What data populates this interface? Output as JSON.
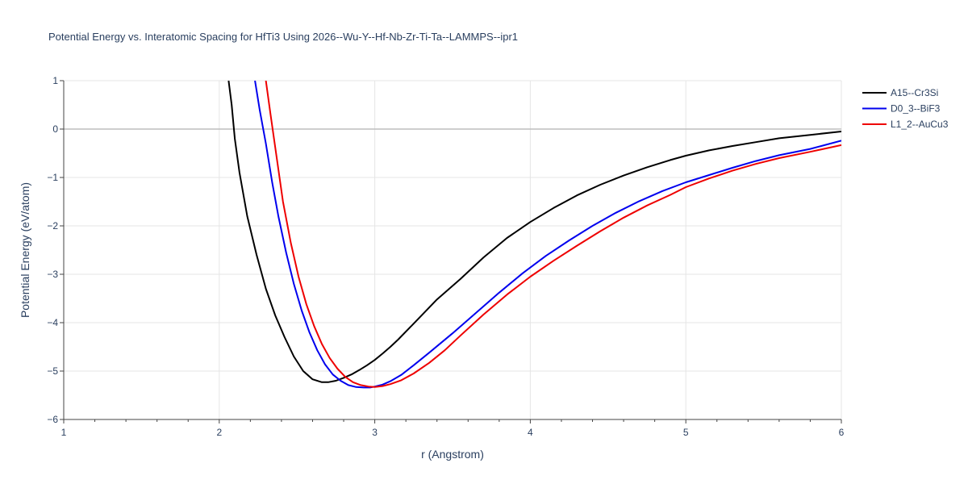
{
  "chart_data": {
    "type": "line",
    "title": "Potential Energy vs. Interatomic Spacing for HfTi3 Using 2026--Wu-Y--Hf-Nb-Zr-Ti-Ta--LAMMPS--ipr1",
    "xlabel": "r (Angstrom)",
    "ylabel": "Potential Energy (eV/atom)",
    "xlim": [
      1,
      6
    ],
    "ylim": [
      -6,
      1
    ],
    "xticks": [
      1,
      2,
      3,
      4,
      5,
      6
    ],
    "yticks": [
      1,
      0,
      -1,
      -2,
      -3,
      -4,
      -5,
      -6
    ],
    "xtick_labels": [
      "1",
      "2",
      "3",
      "4",
      "5",
      "6"
    ],
    "ytick_labels": [
      "1",
      "0",
      "−1",
      "−2",
      "−3",
      "−4",
      "−5",
      "−6"
    ],
    "grid": true,
    "legend_position": "top-right",
    "series": [
      {
        "name": "A15--Cr3Si",
        "color": "#000000",
        "x": [
          2.06,
          2.08,
          2.1,
          2.13,
          2.18,
          2.24,
          2.3,
          2.36,
          2.42,
          2.48,
          2.54,
          2.6,
          2.66,
          2.7,
          2.75,
          2.8,
          2.85,
          2.9,
          2.95,
          3.0,
          3.05,
          3.1,
          3.15,
          3.25,
          3.4,
          3.55,
          3.7,
          3.85,
          4.0,
          4.15,
          4.3,
          4.45,
          4.6,
          4.75,
          4.9,
          5.0,
          5.15,
          5.3,
          5.45,
          5.6,
          5.8,
          6.0
        ],
        "y": [
          1.0,
          0.5,
          -0.2,
          -0.9,
          -1.8,
          -2.6,
          -3.3,
          -3.85,
          -4.3,
          -4.7,
          -5.0,
          -5.17,
          -5.23,
          -5.23,
          -5.2,
          -5.14,
          -5.07,
          -4.98,
          -4.88,
          -4.77,
          -4.64,
          -4.5,
          -4.35,
          -4.02,
          -3.52,
          -3.1,
          -2.65,
          -2.25,
          -1.92,
          -1.63,
          -1.37,
          -1.15,
          -0.96,
          -0.79,
          -0.64,
          -0.55,
          -0.44,
          -0.35,
          -0.27,
          -0.19,
          -0.12,
          -0.05
        ]
      },
      {
        "name": "D0_3--BiF3",
        "color": "#0000ee",
        "x": [
          2.23,
          2.26,
          2.3,
          2.34,
          2.38,
          2.43,
          2.48,
          2.53,
          2.58,
          2.63,
          2.68,
          2.73,
          2.78,
          2.83,
          2.88,
          2.93,
          2.97,
          3.0,
          3.05,
          3.1,
          3.17,
          3.25,
          3.35,
          3.5,
          3.65,
          3.8,
          3.95,
          4.1,
          4.25,
          4.4,
          4.55,
          4.7,
          4.85,
          5.0,
          5.15,
          5.3,
          5.45,
          5.6,
          5.8,
          6.0
        ],
        "y": [
          1.0,
          0.4,
          -0.3,
          -1.1,
          -1.8,
          -2.55,
          -3.2,
          -3.75,
          -4.2,
          -4.57,
          -4.86,
          -5.07,
          -5.2,
          -5.29,
          -5.33,
          -5.34,
          -5.34,
          -5.32,
          -5.28,
          -5.21,
          -5.08,
          -4.88,
          -4.62,
          -4.22,
          -3.8,
          -3.38,
          -2.98,
          -2.62,
          -2.3,
          -2.0,
          -1.73,
          -1.49,
          -1.28,
          -1.1,
          -0.95,
          -0.8,
          -0.66,
          -0.54,
          -0.41,
          -0.24
        ]
      },
      {
        "name": "L1_2--AuCu3",
        "color": "#ee0000",
        "x": [
          2.3,
          2.33,
          2.37,
          2.41,
          2.46,
          2.51,
          2.56,
          2.61,
          2.66,
          2.71,
          2.76,
          2.81,
          2.86,
          2.91,
          2.96,
          3.0,
          3.05,
          3.1,
          3.17,
          3.25,
          3.35,
          3.45,
          3.55,
          3.7,
          3.85,
          4.0,
          4.15,
          4.3,
          4.45,
          4.6,
          4.75,
          4.9,
          5.0,
          5.15,
          5.3,
          5.45,
          5.6,
          5.8,
          6.0
        ],
        "y": [
          1.0,
          0.3,
          -0.6,
          -1.5,
          -2.35,
          -3.05,
          -3.62,
          -4.07,
          -4.44,
          -4.73,
          -4.95,
          -5.12,
          -5.23,
          -5.29,
          -5.32,
          -5.33,
          -5.31,
          -5.27,
          -5.19,
          -5.05,
          -4.83,
          -4.57,
          -4.27,
          -3.83,
          -3.42,
          -3.05,
          -2.72,
          -2.41,
          -2.11,
          -1.83,
          -1.58,
          -1.36,
          -1.2,
          -1.02,
          -0.86,
          -0.72,
          -0.6,
          -0.47,
          -0.33
        ]
      }
    ]
  }
}
